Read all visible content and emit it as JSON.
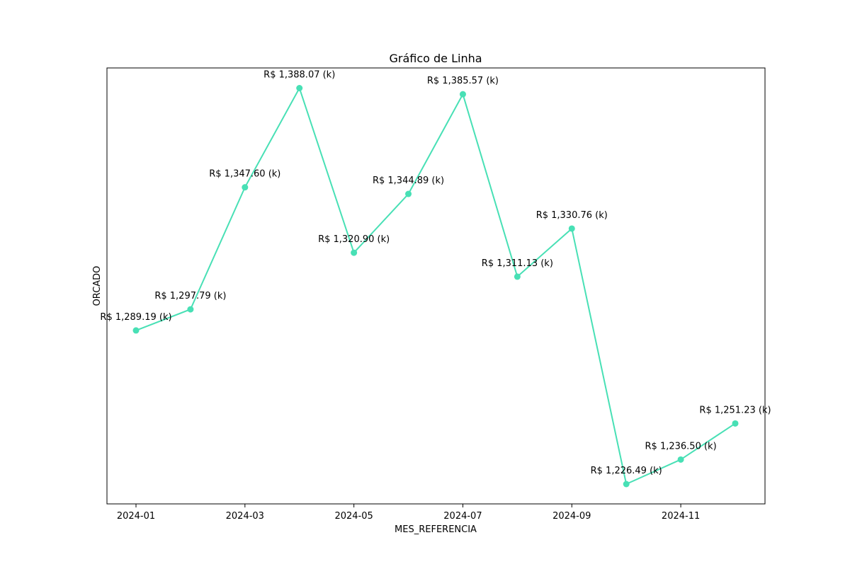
{
  "chart_data": {
    "type": "line",
    "title": "Gráfico de Linha",
    "xlabel": "MES_REFERENCIA",
    "ylabel": "ORCADO",
    "x": [
      "2024-01",
      "2024-02",
      "2024-03",
      "2024-04",
      "2024-05",
      "2024-06",
      "2024-07",
      "2024-08",
      "2024-09",
      "2024-10",
      "2024-11",
      "2024-12"
    ],
    "x_ticks": [
      "2024-01",
      "2024-03",
      "2024-05",
      "2024-07",
      "2024-09",
      "2024-11"
    ],
    "series": [
      {
        "values": [
          1289.19,
          1297.79,
          1347.6,
          1388.07,
          1320.9,
          1344.89,
          1385.57,
          1311.13,
          1330.76,
          1226.49,
          1236.5,
          1251.23
        ],
        "labels": [
          "R$ 1,289.19 (k)",
          "R$ 1,297.79 (k)",
          "R$ 1,347.60 (k)",
          "R$ 1,388.07 (k)",
          "R$ 1,320.90 (k)",
          "R$ 1,344.89 (k)",
          "R$ 1,385.57 (k)",
          "R$ 1,311.13 (k)",
          "R$ 1,330.76 (k)",
          "R$ 1,226.49 (k)",
          "R$ 1,236.50 (k)",
          "R$ 1,251.23 (k)"
        ],
        "color": "#48e0b5",
        "marker": "circle"
      }
    ],
    "y_ticks_visible": false,
    "grid": false,
    "legend": "none"
  }
}
